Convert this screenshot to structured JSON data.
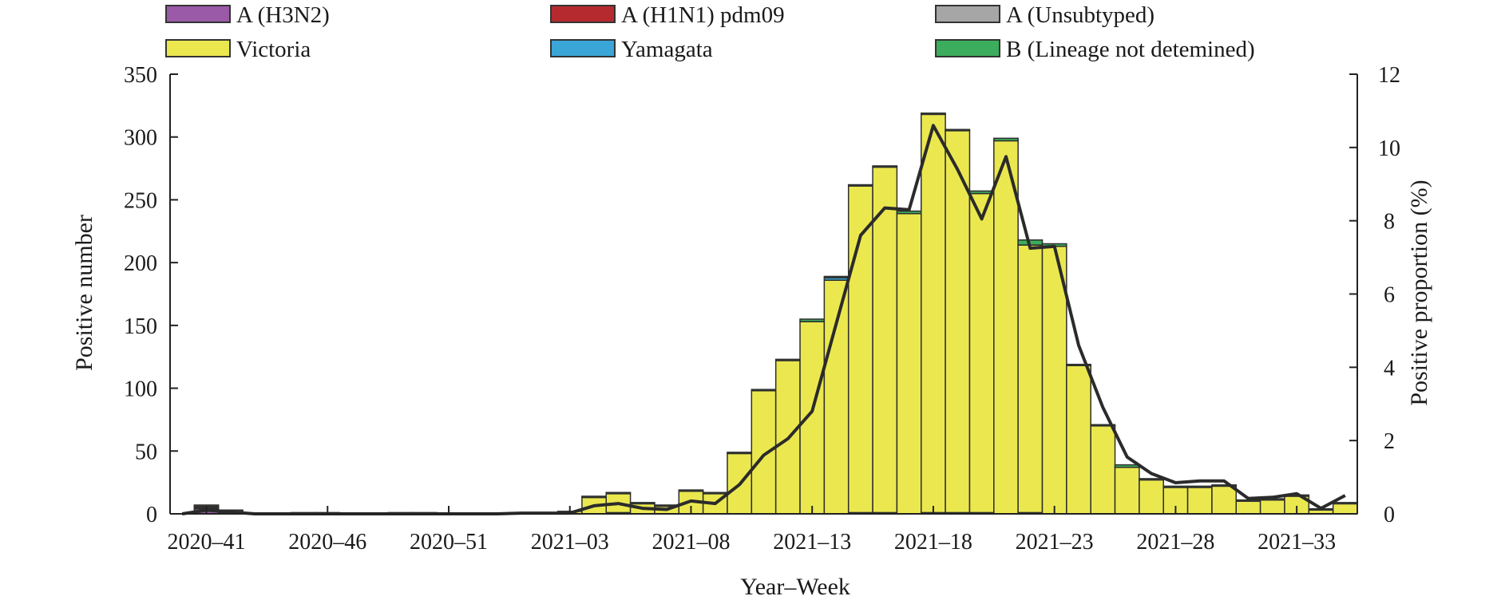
{
  "chart_data": {
    "type": "bar",
    "stacked": true,
    "xlabel": "Year–Week",
    "ylabel": "Positive number",
    "y2label": "Positive proportion (%)",
    "ylim": [
      0,
      350
    ],
    "y2lim": [
      0,
      12
    ],
    "yticks": [
      0,
      50,
      100,
      150,
      200,
      250,
      300,
      350
    ],
    "y2ticks": [
      0,
      2,
      4,
      6,
      8,
      10,
      12
    ],
    "grid": false,
    "legend_position": "top",
    "categories": [
      "2020–40",
      "2020–41",
      "2020–42",
      "2020–43",
      "2020–44",
      "2020–45",
      "2020–46",
      "2020–47",
      "2020–48",
      "2020–49",
      "2020–50",
      "2020–51",
      "2020–52",
      "2020–53",
      "2021–01",
      "2021–02",
      "2021–03",
      "2021–04",
      "2021–05",
      "2021–06",
      "2021–07",
      "2021–08",
      "2021–09",
      "2021–10",
      "2021–11",
      "2021–12",
      "2021–13",
      "2021–14",
      "2021–15",
      "2021–16",
      "2021–17",
      "2021–18",
      "2021–19",
      "2021–20",
      "2021–21",
      "2021–22",
      "2021–23",
      "2021–24",
      "2021–25",
      "2021–26",
      "2021–27",
      "2021–28",
      "2021–29",
      "2021–30",
      "2021–31",
      "2021–32",
      "2021–33",
      "2021–34",
      "2021–35"
    ],
    "tick_labels": [
      "2020–41",
      "2020–46",
      "2020–51",
      "2021–03",
      "2021–08",
      "2021–13",
      "2021–18",
      "2021–23",
      "2021–28",
      "2021–33"
    ],
    "series": [
      {
        "name": "A (H3N2)",
        "color": "#9a5aa8",
        "values": [
          0,
          4,
          1,
          0,
          0,
          0,
          0,
          0,
          0,
          0,
          0,
          0,
          0,
          0,
          0,
          0,
          0,
          0,
          0,
          0,
          0,
          0,
          0,
          0,
          0,
          0,
          0,
          0,
          0,
          0,
          0,
          0,
          0,
          0,
          0,
          0,
          0,
          0,
          0,
          0,
          0,
          0,
          0,
          0,
          0,
          0,
          0,
          0,
          0
        ]
      },
      {
        "name": "A (H1N1) pdm09",
        "color": "#b52a2e",
        "values": [
          0,
          1,
          0,
          0,
          0,
          0,
          0,
          0,
          0,
          0,
          0,
          0,
          0,
          0,
          0,
          0,
          0,
          0,
          0,
          0,
          0,
          0,
          0,
          0,
          0,
          0,
          0,
          0,
          0,
          0,
          0,
          0,
          0,
          0,
          0,
          0,
          0,
          0,
          0,
          0,
          0,
          0,
          0,
          0,
          0,
          0,
          0,
          0,
          0
        ]
      },
      {
        "name": "A (Unsubtyped)",
        "color": "#a6a6a6",
        "values": [
          0,
          1,
          1,
          0,
          0,
          1,
          0,
          0,
          0,
          0,
          1,
          0,
          0,
          0,
          0,
          0,
          0,
          0,
          1,
          0,
          0,
          0,
          0,
          0,
          0,
          0,
          0,
          0,
          1,
          1,
          0,
          1,
          1,
          1,
          0,
          1,
          0,
          0,
          0,
          0,
          0,
          0,
          0,
          0,
          0,
          0,
          0,
          0,
          0
        ]
      },
      {
        "name": "Victoria",
        "color": "#ebe84f",
        "values": [
          0,
          1,
          1,
          0,
          0,
          0,
          1,
          0,
          0,
          1,
          0,
          0,
          0,
          0,
          1,
          1,
          2,
          13,
          15,
          8,
          6,
          18,
          16,
          48,
          98,
          122,
          153,
          186,
          260,
          275,
          239,
          317,
          304,
          254,
          297,
          213,
          213,
          118,
          70,
          37,
          27,
          21,
          21,
          22,
          10,
          11,
          14,
          3,
          8
        ]
      },
      {
        "name": "Yamagata",
        "color": "#3aa6d8",
        "values": [
          0,
          0,
          0,
          0,
          0,
          0,
          0,
          0,
          0,
          0,
          0,
          0,
          0,
          0,
          0,
          0,
          0,
          0,
          0,
          0,
          0,
          0,
          0,
          0,
          0,
          0,
          0,
          2,
          0,
          0,
          0,
          0,
          0,
          0,
          0,
          0,
          0,
          0,
          0,
          0,
          0,
          0,
          0,
          0,
          0,
          0,
          0,
          0,
          0
        ]
      },
      {
        "name": "B (Lineage not detemined)",
        "color": "#3cad5c",
        "values": [
          0,
          0,
          0,
          0,
          0,
          0,
          0,
          0,
          0,
          0,
          0,
          0,
          0,
          0,
          0,
          0,
          0,
          1,
          1,
          1,
          1,
          1,
          1,
          1,
          1,
          1,
          2,
          1,
          1,
          1,
          2,
          1,
          1,
          2,
          2,
          4,
          2,
          1,
          1,
          2,
          1,
          1,
          1,
          1,
          1,
          1,
          1,
          1,
          1
        ]
      }
    ],
    "line": {
      "axis": "right",
      "color": "#2b2b2b",
      "values": [
        0,
        0.1,
        0.05,
        0,
        0,
        0,
        0,
        0,
        0,
        0,
        0,
        0,
        0,
        0,
        0.02,
        0.02,
        0.02,
        0.22,
        0.28,
        0.15,
        0.12,
        0.35,
        0.28,
        0.8,
        1.6,
        2.05,
        2.8,
        5.2,
        7.6,
        8.35,
        8.3,
        10.6,
        9.4,
        8.05,
        9.75,
        7.25,
        7.3,
        4.6,
        2.9,
        1.55,
        1.1,
        0.85,
        0.9,
        0.9,
        0.42,
        0.45,
        0.55,
        0.15,
        0.5
      ]
    }
  }
}
